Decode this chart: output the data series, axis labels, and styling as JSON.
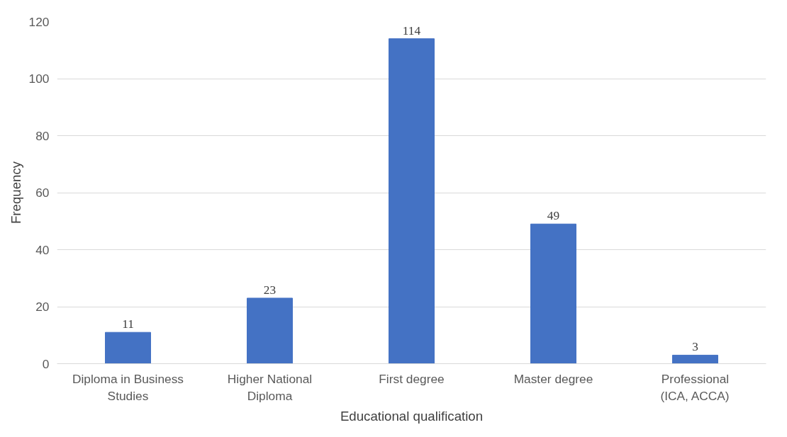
{
  "chart_data": {
    "type": "bar",
    "xlabel": "Educational qualification",
    "ylabel": "Frequency",
    "categories": [
      "Diploma in Business\nStudies",
      "Higher National\nDiploma",
      "First degree",
      "Master degree",
      "Professional\n(ICA, ACCA)"
    ],
    "values": [
      11,
      23,
      114,
      49,
      3
    ],
    "color": "#4472c4",
    "ylim": [
      0,
      120
    ],
    "yticks": [
      0,
      20,
      40,
      60,
      80,
      100,
      120
    ],
    "grid": "y",
    "data_labels": true
  }
}
